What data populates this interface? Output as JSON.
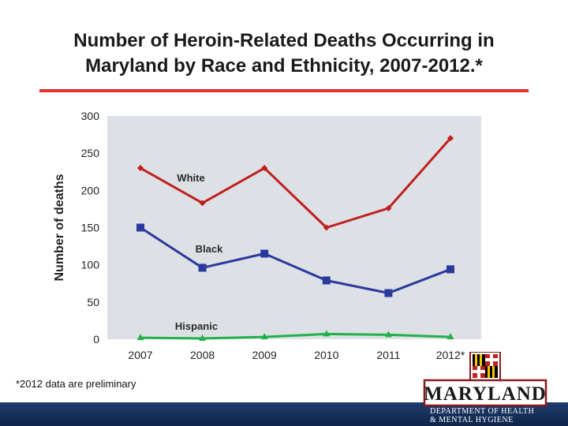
{
  "title_line1": "Number of Heroin-Related Deaths Occurring in",
  "title_line2": "Maryland by Race and Ethnicity, 2007-2012.*",
  "footnote": "*2012 data are preliminary",
  "logo": {
    "wordmark": "MARYLAND",
    "dept_line1": "Department of Health",
    "dept_line2": "& Mental Hygiene"
  },
  "colors": {
    "accent_rule": "#e23232",
    "plot_bg": "#dde1e6",
    "white_series": "#c01f1f",
    "black_series": "#2a3a9c",
    "hispanic_series": "#22b04a"
  },
  "chart_data": {
    "type": "line",
    "categories": [
      "2007",
      "2008",
      "2009",
      "2010",
      "2011",
      "2012*"
    ],
    "ylabel": "Number of deaths",
    "xlabel": "",
    "ylim": [
      0,
      300
    ],
    "yticks": [
      0,
      50,
      100,
      150,
      200,
      250,
      300
    ],
    "grid": false,
    "legend": "inline labels",
    "series": [
      {
        "name": "White",
        "marker": "diamond",
        "values": [
          230,
          183,
          230,
          150,
          176,
          270
        ]
      },
      {
        "name": "Black",
        "marker": "square",
        "values": [
          150,
          96,
          115,
          79,
          62,
          94
        ]
      },
      {
        "name": "Hispanic",
        "marker": "triangle",
        "values": [
          2,
          1,
          3,
          7,
          6,
          3
        ]
      }
    ]
  }
}
